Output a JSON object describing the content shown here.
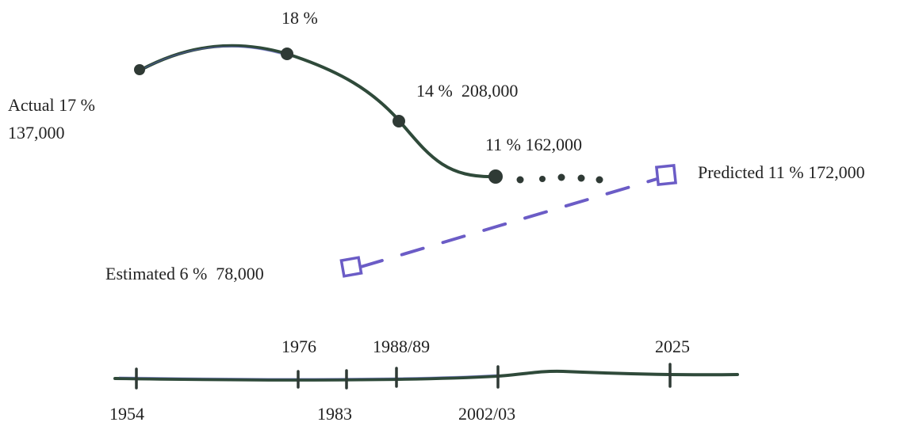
{
  "chart_data": {
    "type": "line",
    "timeline_ticks": [
      "1954",
      "1976",
      "1983",
      "1988/89",
      "2002/03",
      "2025"
    ],
    "series": [
      {
        "name": "Actual",
        "color": "#2f4a3a",
        "points": [
          {
            "x": "1954",
            "pct": 17,
            "count": 137000,
            "label_lines": [
              "Actual 17 %",
              "137,000"
            ]
          },
          {
            "x": "1976",
            "pct": 18,
            "count": null,
            "label_lines": [
              "18 %"
            ]
          },
          {
            "x": "1988/89",
            "pct": 14,
            "count": 208000,
            "label_lines": [
              "14 %  208,000"
            ]
          },
          {
            "x": "2002/03",
            "pct": 11,
            "count": 162000,
            "label_lines": [
              "11 % 162,000"
            ]
          }
        ]
      },
      {
        "name": "Predicted",
        "color": "#6b5cc6",
        "style": "dashed",
        "points": [
          {
            "x": "2002/03",
            "pct": 6,
            "count": 78000,
            "label_lines": [
              "Estimated 6 %  78,000"
            ]
          },
          {
            "x": "2025",
            "pct": 11,
            "count": 172000,
            "label_lines": [
              "Predicted 11 % 172,000"
            ]
          }
        ]
      }
    ]
  }
}
